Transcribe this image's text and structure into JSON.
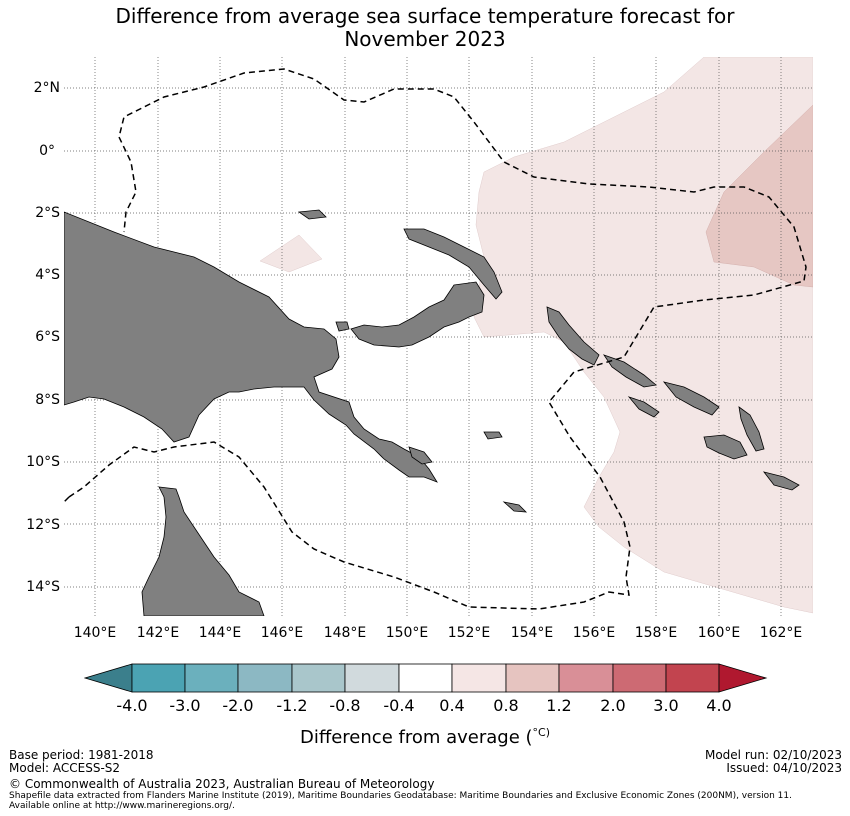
{
  "title": {
    "line1": "Difference from average sea surface temperature forecast for",
    "line2": "November 2023"
  },
  "map": {
    "lat_labels": [
      "2°N",
      "0°",
      "2°S",
      "4°S",
      "6°S",
      "8°S",
      "10°S",
      "12°S",
      "14°S"
    ],
    "lon_labels": [
      "140°E",
      "142°E",
      "144°E",
      "146°E",
      "148°E",
      "150°E",
      "152°E",
      "154°E",
      "156°E",
      "158°E",
      "160°E",
      "162°E"
    ],
    "extent": {
      "lon": [
        139,
        163
      ],
      "lat": [
        -15,
        3
      ]
    },
    "regions": [
      {
        "label": "0.4 to 0.8",
        "color": "#f3e6e5"
      },
      {
        "label": "0.8 to 1.2",
        "color": "#e6c7c3"
      }
    ],
    "land_color": "#808080",
    "boundary_style": "dashed"
  },
  "colorbar": {
    "title": "Difference from average (",
    "title_symbol": "°C)",
    "ticks": [
      "-4.0",
      "-3.0",
      "-2.0",
      "-1.2",
      "-0.8",
      "-0.4",
      "0.4",
      "0.8",
      "1.2",
      "2.0",
      "3.0",
      "4.0"
    ],
    "colors": [
      "#3b7f8c",
      "#4ba3b3",
      "#6bb0bd",
      "#8cb8c3",
      "#a9c6cb",
      "#d1dadd",
      "#ffffff",
      "#f5e6e5",
      "#e6c4c0",
      "#d98f97",
      "#cd6a73",
      "#c2444f",
      "#b0182f"
    ]
  },
  "footer": {
    "base_period": "Base period: 1981-2018",
    "model": "Model: ACCESS-S2",
    "model_run": "Model run: 02/10/2023",
    "issued": "Issued: 04/10/2023",
    "copyright": "© Commonwealth of Australia 2023, Australian Bureau of Meteorology",
    "shapefile": "Shapefile data extracted from Flanders Marine Institute (2019), Maritime Boundaries Geodatabase: Maritime Boundaries and Exclusive Economic Zones (200NM), version 11.",
    "available": "Available online at http://www.marineregions.org/."
  }
}
